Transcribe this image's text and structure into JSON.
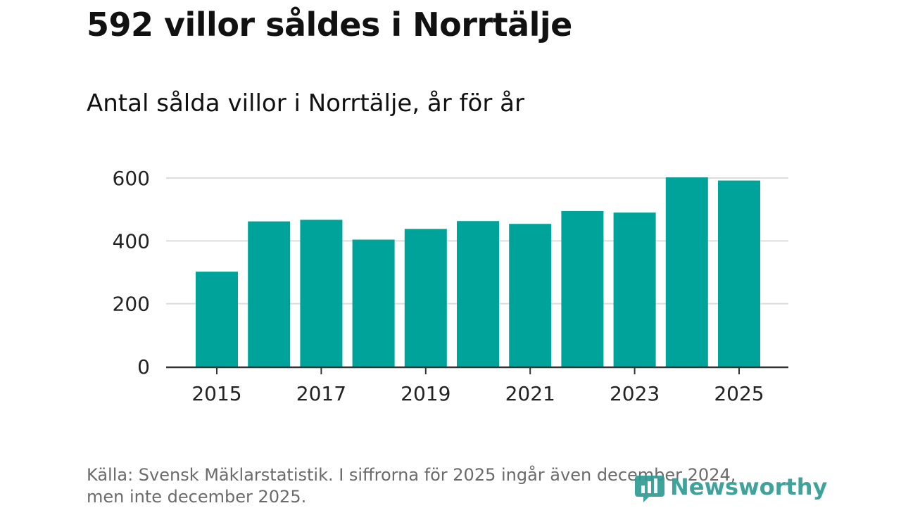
{
  "title": "592 villor såldes i Norrtälje",
  "subtitle": "Antal sålda villor i Norrtälje, år för år",
  "footer": {
    "line1": "Källa: Svensk Mäklarstatistik. I siffrorna för 2025 ingår även december 2024,",
    "line2": "men inte december 2025."
  },
  "brand": {
    "name": "Newsworthy"
  },
  "colors": {
    "bar": "#00a39a",
    "grid": "#dcdcdc",
    "axis": "#333333",
    "tick_text": "#222222"
  },
  "chart_data": {
    "type": "bar",
    "categories": [
      "2015",
      "2016",
      "2017",
      "2018",
      "2019",
      "2020",
      "2021",
      "2022",
      "2023",
      "2024",
      "2025"
    ],
    "values": [
      302,
      462,
      467,
      404,
      438,
      463,
      454,
      495,
      490,
      602,
      592
    ],
    "xtick_labels": [
      "2015",
      "2017",
      "2019",
      "2021",
      "2023",
      "2025"
    ],
    "yticks": [
      0,
      200,
      400,
      600
    ],
    "ylim": [
      0,
      620
    ],
    "xlabel": "",
    "ylabel": "",
    "grid": true
  }
}
